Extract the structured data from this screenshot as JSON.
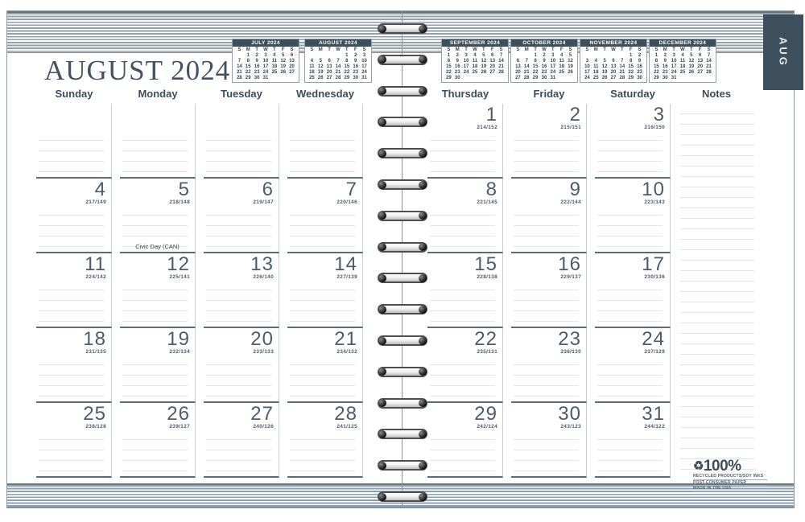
{
  "page": {
    "month_title": "AUGUST 2024",
    "tab_label": "AUG"
  },
  "colors": {
    "slate_dark": "#3d4e5c",
    "stripe_blue": "#8da0ac",
    "date_gray": "#4e5c68"
  },
  "day_headers": [
    "Sunday",
    "Monday",
    "Tuesday",
    "Wednesday",
    "Thursday",
    "Friday",
    "Saturday",
    "Notes"
  ],
  "mini_calendars": [
    {
      "title": "JULY 2024",
      "days": [
        "S",
        "M",
        "T",
        "W",
        "T",
        "F",
        "S"
      ],
      "weeks": [
        [
          "",
          "1",
          "2",
          "3",
          "4",
          "5",
          "6"
        ],
        [
          "7",
          "8",
          "9",
          "10",
          "11",
          "12",
          "13"
        ],
        [
          "14",
          "15",
          "16",
          "17",
          "18",
          "19",
          "20"
        ],
        [
          "21",
          "22",
          "23",
          "24",
          "25",
          "26",
          "27"
        ],
        [
          "28",
          "29",
          "30",
          "31",
          "",
          "",
          ""
        ]
      ]
    },
    {
      "title": "AUGUST 2024",
      "days": [
        "S",
        "M",
        "T",
        "W",
        "T",
        "F",
        "S"
      ],
      "weeks": [
        [
          "",
          "",
          "",
          "",
          "1",
          "2",
          "3"
        ],
        [
          "4",
          "5",
          "6",
          "7",
          "8",
          "9",
          "10"
        ],
        [
          "11",
          "12",
          "13",
          "14",
          "15",
          "16",
          "17"
        ],
        [
          "18",
          "19",
          "20",
          "21",
          "22",
          "23",
          "24"
        ],
        [
          "25",
          "26",
          "27",
          "28",
          "29",
          "30",
          "31"
        ]
      ]
    },
    {
      "title": "SEPTEMBER 2024",
      "days": [
        "S",
        "M",
        "T",
        "W",
        "T",
        "F",
        "S"
      ],
      "weeks": [
        [
          "1",
          "2",
          "3",
          "4",
          "5",
          "6",
          "7"
        ],
        [
          "8",
          "9",
          "10",
          "11",
          "12",
          "13",
          "14"
        ],
        [
          "15",
          "16",
          "17",
          "18",
          "19",
          "20",
          "21"
        ],
        [
          "22",
          "23",
          "24",
          "25",
          "26",
          "27",
          "28"
        ],
        [
          "29",
          "30",
          "",
          "",
          "",
          "",
          ""
        ]
      ]
    },
    {
      "title": "OCTOBER 2024",
      "days": [
        "S",
        "M",
        "T",
        "W",
        "T",
        "F",
        "S"
      ],
      "weeks": [
        [
          "",
          "",
          "1",
          "2",
          "3",
          "4",
          "5"
        ],
        [
          "6",
          "7",
          "8",
          "9",
          "10",
          "11",
          "12"
        ],
        [
          "13",
          "14",
          "15",
          "16",
          "17",
          "18",
          "19"
        ],
        [
          "20",
          "21",
          "22",
          "23",
          "24",
          "25",
          "26"
        ],
        [
          "27",
          "28",
          "29",
          "30",
          "31",
          "",
          ""
        ]
      ]
    },
    {
      "title": "NOVEMBER 2024",
      "days": [
        "S",
        "M",
        "T",
        "W",
        "T",
        "F",
        "S"
      ],
      "weeks": [
        [
          "",
          "",
          "",
          "",
          "",
          "1",
          "2"
        ],
        [
          "3",
          "4",
          "5",
          "6",
          "7",
          "8",
          "9"
        ],
        [
          "10",
          "11",
          "12",
          "13",
          "14",
          "15",
          "16"
        ],
        [
          "17",
          "18",
          "19",
          "20",
          "21",
          "22",
          "23"
        ],
        [
          "24",
          "25",
          "26",
          "27",
          "28",
          "29",
          "30"
        ]
      ]
    },
    {
      "title": "DECEMBER 2024",
      "days": [
        "S",
        "M",
        "T",
        "W",
        "T",
        "F",
        "S"
      ],
      "weeks": [
        [
          "1",
          "2",
          "3",
          "4",
          "5",
          "6",
          "7"
        ],
        [
          "8",
          "9",
          "10",
          "11",
          "12",
          "13",
          "14"
        ],
        [
          "15",
          "16",
          "17",
          "18",
          "19",
          "20",
          "21"
        ],
        [
          "22",
          "23",
          "24",
          "25",
          "26",
          "27",
          "28"
        ],
        [
          "29",
          "30",
          "31",
          "",
          "",
          "",
          ""
        ]
      ]
    }
  ],
  "grid": {
    "rows": [
      {
        "left": [
          {
            "date": "",
            "code": ""
          },
          {
            "date": "",
            "code": ""
          },
          {
            "date": "",
            "code": ""
          },
          {
            "date": "",
            "code": ""
          }
        ],
        "right": [
          {
            "date": "1",
            "code": "214/152"
          },
          {
            "date": "2",
            "code": "215/151"
          },
          {
            "date": "3",
            "code": "216/150"
          }
        ]
      },
      {
        "left": [
          {
            "date": "4",
            "code": "217/149"
          },
          {
            "date": "5",
            "code": "218/148",
            "note": "Civic Day (CAN)"
          },
          {
            "date": "6",
            "code": "219/147"
          },
          {
            "date": "7",
            "code": "220/146"
          }
        ],
        "right": [
          {
            "date": "8",
            "code": "221/145"
          },
          {
            "date": "9",
            "code": "222/144"
          },
          {
            "date": "10",
            "code": "223/143"
          }
        ]
      },
      {
        "left": [
          {
            "date": "11",
            "code": "224/142"
          },
          {
            "date": "12",
            "code": "225/141"
          },
          {
            "date": "13",
            "code": "226/140"
          },
          {
            "date": "14",
            "code": "227/139"
          }
        ],
        "right": [
          {
            "date": "15",
            "code": "228/138"
          },
          {
            "date": "16",
            "code": "229/137"
          },
          {
            "date": "17",
            "code": "230/136"
          }
        ]
      },
      {
        "left": [
          {
            "date": "18",
            "code": "231/135"
          },
          {
            "date": "19",
            "code": "232/134"
          },
          {
            "date": "20",
            "code": "233/133"
          },
          {
            "date": "21",
            "code": "234/132"
          }
        ],
        "right": [
          {
            "date": "22",
            "code": "235/131"
          },
          {
            "date": "23",
            "code": "236/130"
          },
          {
            "date": "24",
            "code": "237/129"
          }
        ]
      },
      {
        "left": [
          {
            "date": "25",
            "code": "238/128"
          },
          {
            "date": "26",
            "code": "239/127"
          },
          {
            "date": "27",
            "code": "240/126"
          },
          {
            "date": "28",
            "code": "241/125"
          }
        ],
        "right": [
          {
            "date": "29",
            "code": "242/124"
          },
          {
            "date": "30",
            "code": "243/123"
          },
          {
            "date": "31",
            "code": "244/122"
          }
        ]
      }
    ]
  },
  "eco": {
    "recycle_symbol": "♻",
    "headline": "100%",
    "lines": [
      "RECYCLED PRODUCTS/SOY INKS",
      "POST-CONSUMER PAPER",
      "MADE IN THE USA"
    ]
  }
}
